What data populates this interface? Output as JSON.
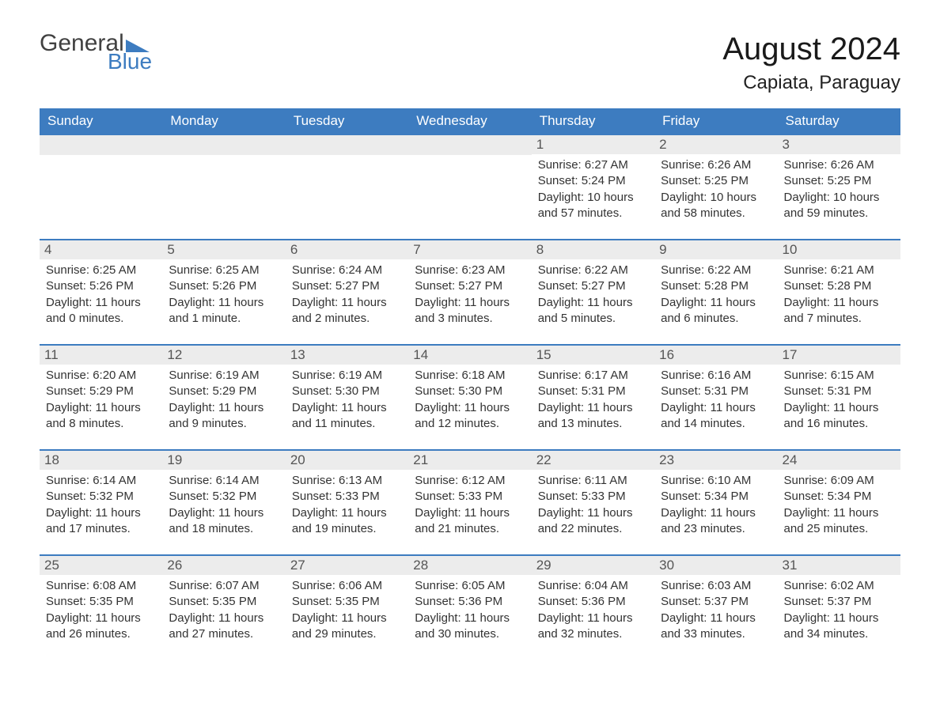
{
  "logo": {
    "general": "General",
    "blue": "Blue",
    "tri_color": "#3d7cc0"
  },
  "title": "August 2024",
  "location": "Capiata, Paraguay",
  "colors": {
    "header_bg": "#3d7cc0",
    "header_text": "#ffffff",
    "daynum_bg": "#ececec",
    "daynum_text": "#555555",
    "border": "#3d7cc0",
    "body_text": "#333333"
  },
  "dow": [
    "Sunday",
    "Monday",
    "Tuesday",
    "Wednesday",
    "Thursday",
    "Friday",
    "Saturday"
  ],
  "weeks": [
    [
      null,
      null,
      null,
      null,
      {
        "n": "1",
        "sr": "6:27 AM",
        "ss": "5:24 PM",
        "dl": "10 hours and 57 minutes."
      },
      {
        "n": "2",
        "sr": "6:26 AM",
        "ss": "5:25 PM",
        "dl": "10 hours and 58 minutes."
      },
      {
        "n": "3",
        "sr": "6:26 AM",
        "ss": "5:25 PM",
        "dl": "10 hours and 59 minutes."
      }
    ],
    [
      {
        "n": "4",
        "sr": "6:25 AM",
        "ss": "5:26 PM",
        "dl": "11 hours and 0 minutes."
      },
      {
        "n": "5",
        "sr": "6:25 AM",
        "ss": "5:26 PM",
        "dl": "11 hours and 1 minute."
      },
      {
        "n": "6",
        "sr": "6:24 AM",
        "ss": "5:27 PM",
        "dl": "11 hours and 2 minutes."
      },
      {
        "n": "7",
        "sr": "6:23 AM",
        "ss": "5:27 PM",
        "dl": "11 hours and 3 minutes."
      },
      {
        "n": "8",
        "sr": "6:22 AM",
        "ss": "5:27 PM",
        "dl": "11 hours and 5 minutes."
      },
      {
        "n": "9",
        "sr": "6:22 AM",
        "ss": "5:28 PM",
        "dl": "11 hours and 6 minutes."
      },
      {
        "n": "10",
        "sr": "6:21 AM",
        "ss": "5:28 PM",
        "dl": "11 hours and 7 minutes."
      }
    ],
    [
      {
        "n": "11",
        "sr": "6:20 AM",
        "ss": "5:29 PM",
        "dl": "11 hours and 8 minutes."
      },
      {
        "n": "12",
        "sr": "6:19 AM",
        "ss": "5:29 PM",
        "dl": "11 hours and 9 minutes."
      },
      {
        "n": "13",
        "sr": "6:19 AM",
        "ss": "5:30 PM",
        "dl": "11 hours and 11 minutes."
      },
      {
        "n": "14",
        "sr": "6:18 AM",
        "ss": "5:30 PM",
        "dl": "11 hours and 12 minutes."
      },
      {
        "n": "15",
        "sr": "6:17 AM",
        "ss": "5:31 PM",
        "dl": "11 hours and 13 minutes."
      },
      {
        "n": "16",
        "sr": "6:16 AM",
        "ss": "5:31 PM",
        "dl": "11 hours and 14 minutes."
      },
      {
        "n": "17",
        "sr": "6:15 AM",
        "ss": "5:31 PM",
        "dl": "11 hours and 16 minutes."
      }
    ],
    [
      {
        "n": "18",
        "sr": "6:14 AM",
        "ss": "5:32 PM",
        "dl": "11 hours and 17 minutes."
      },
      {
        "n": "19",
        "sr": "6:14 AM",
        "ss": "5:32 PM",
        "dl": "11 hours and 18 minutes."
      },
      {
        "n": "20",
        "sr": "6:13 AM",
        "ss": "5:33 PM",
        "dl": "11 hours and 19 minutes."
      },
      {
        "n": "21",
        "sr": "6:12 AM",
        "ss": "5:33 PM",
        "dl": "11 hours and 21 minutes."
      },
      {
        "n": "22",
        "sr": "6:11 AM",
        "ss": "5:33 PM",
        "dl": "11 hours and 22 minutes."
      },
      {
        "n": "23",
        "sr": "6:10 AM",
        "ss": "5:34 PM",
        "dl": "11 hours and 23 minutes."
      },
      {
        "n": "24",
        "sr": "6:09 AM",
        "ss": "5:34 PM",
        "dl": "11 hours and 25 minutes."
      }
    ],
    [
      {
        "n": "25",
        "sr": "6:08 AM",
        "ss": "5:35 PM",
        "dl": "11 hours and 26 minutes."
      },
      {
        "n": "26",
        "sr": "6:07 AM",
        "ss": "5:35 PM",
        "dl": "11 hours and 27 minutes."
      },
      {
        "n": "27",
        "sr": "6:06 AM",
        "ss": "5:35 PM",
        "dl": "11 hours and 29 minutes."
      },
      {
        "n": "28",
        "sr": "6:05 AM",
        "ss": "5:36 PM",
        "dl": "11 hours and 30 minutes."
      },
      {
        "n": "29",
        "sr": "6:04 AM",
        "ss": "5:36 PM",
        "dl": "11 hours and 32 minutes."
      },
      {
        "n": "30",
        "sr": "6:03 AM",
        "ss": "5:37 PM",
        "dl": "11 hours and 33 minutes."
      },
      {
        "n": "31",
        "sr": "6:02 AM",
        "ss": "5:37 PM",
        "dl": "11 hours and 34 minutes."
      }
    ]
  ],
  "labels": {
    "sunrise": "Sunrise: ",
    "sunset": "Sunset: ",
    "daylight": "Daylight: "
  }
}
